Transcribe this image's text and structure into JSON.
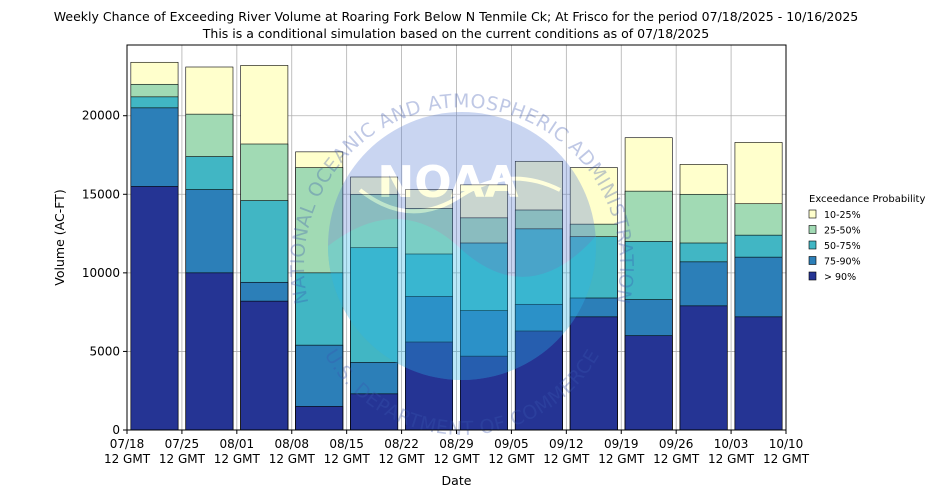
{
  "chart_data": {
    "type": "bar",
    "title": "Weekly Chance of Exceeding River Volume at Roaring Fork Below N Tenmile Ck; At Frisco for the period 07/18/2025 - 10/16/2025",
    "subtitle": "This is a conditional simulation based on the current conditions as of 07/18/2025",
    "xlabel": "Date",
    "ylabel": "Volume (AC-FT)",
    "ylim": [
      0,
      24500
    ],
    "yticks": [
      0,
      5000,
      10000,
      15000,
      20000
    ],
    "xtick_labels": [
      [
        "07/18",
        "12 GMT"
      ],
      [
        "07/25",
        "12 GMT"
      ],
      [
        "08/01",
        "12 GMT"
      ],
      [
        "08/08",
        "12 GMT"
      ],
      [
        "08/15",
        "12 GMT"
      ],
      [
        "08/22",
        "12 GMT"
      ],
      [
        "08/29",
        "12 GMT"
      ],
      [
        "09/05",
        "12 GMT"
      ],
      [
        "09/12",
        "12 GMT"
      ],
      [
        "09/19",
        "12 GMT"
      ],
      [
        "09/26",
        "12 GMT"
      ],
      [
        "10/03",
        "12 GMT"
      ],
      [
        "10/10",
        "12 GMT"
      ]
    ],
    "grid": true,
    "legend_title": "Exceedance Probability",
    "legend_position": "right",
    "series": [
      {
        "name": "10-25%",
        "color": "#ffffcc",
        "values": [
          23400,
          23100,
          23200,
          17700,
          16100,
          15300,
          15600,
          17100,
          16700,
          18600,
          16900,
          18300
        ]
      },
      {
        "name": "25-50%",
        "color": "#a1dab4",
        "values": [
          22000,
          20100,
          18200,
          16700,
          15000,
          14100,
          13500,
          14000,
          13100,
          15200,
          15000,
          14400
        ]
      },
      {
        "name": "50-75%",
        "color": "#41b6c4",
        "values": [
          21200,
          17400,
          14600,
          10000,
          11600,
          11200,
          11900,
          12800,
          12300,
          12000,
          11900,
          12400
        ]
      },
      {
        "name": "75-90%",
        "color": "#2c7fb8",
        "values": [
          20500,
          15300,
          9400,
          5400,
          4300,
          8500,
          7600,
          8000,
          8400,
          8300,
          10700,
          11000
        ]
      },
      {
        "name": "> 90%",
        "color": "#253494",
        "values": [
          15500,
          10000,
          8200,
          1500,
          2300,
          5600,
          4700,
          6300,
          7200,
          6000,
          7900,
          7200
        ]
      }
    ],
    "watermark_text": [
      "NATIONAL OCEANIC AND ATMOSPHERIC ADMINISTRATION",
      "U.S. DEPARTMENT OF COMMERCE",
      "NOAA"
    ]
  }
}
